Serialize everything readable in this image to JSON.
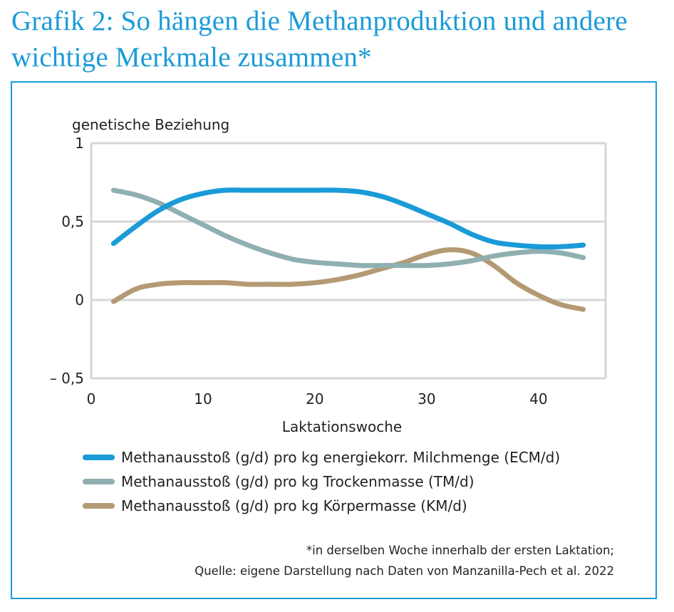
{
  "title": "Grafik 2: So hängen die Methanproduktion und andere wichtige Merkmale zusammen*",
  "chart_data": {
    "type": "line",
    "ylabel": "genetische Beziehung",
    "xlabel": "Laktationswoche",
    "xlim": [
      0,
      46
    ],
    "ylim": [
      -0.5,
      1
    ],
    "xticks": [
      0,
      10,
      20,
      30,
      40
    ],
    "xtick_labels": [
      "0",
      "10",
      "20",
      "30",
      "40"
    ],
    "yticks": [
      1,
      0.5,
      0,
      -0.5
    ],
    "ytick_labels": [
      "1",
      "0,5",
      "0",
      "– 0,5"
    ],
    "grid": "horizontal",
    "legend_position": "bottom",
    "series": [
      {
        "name": "Methanausstoß (g/d) pro kg energiekorr. Milchmenge (ECM/d)",
        "color": "#1a9bd7",
        "x": [
          2,
          4,
          6,
          8,
          10,
          12,
          14,
          16,
          18,
          20,
          22,
          24,
          26,
          28,
          30,
          32,
          34,
          36,
          38,
          40,
          42,
          44
        ],
        "y": [
          0.36,
          0.47,
          0.57,
          0.64,
          0.68,
          0.7,
          0.7,
          0.7,
          0.7,
          0.7,
          0.7,
          0.69,
          0.66,
          0.61,
          0.55,
          0.49,
          0.42,
          0.37,
          0.35,
          0.34,
          0.34,
          0.35
        ]
      },
      {
        "name": "Methanausstoß (g/d) pro kg Trockenmasse (TM/d)",
        "color": "#90afb1",
        "x": [
          2,
          4,
          6,
          8,
          10,
          12,
          14,
          16,
          18,
          20,
          22,
          24,
          26,
          28,
          30,
          32,
          34,
          36,
          38,
          40,
          42,
          44
        ],
        "y": [
          0.7,
          0.67,
          0.62,
          0.55,
          0.48,
          0.41,
          0.35,
          0.3,
          0.26,
          0.24,
          0.23,
          0.22,
          0.22,
          0.22,
          0.22,
          0.23,
          0.25,
          0.28,
          0.3,
          0.31,
          0.3,
          0.27
        ]
      },
      {
        "name": "Methanausstoß (g/d) pro  kg Körpermasse (KM/d)",
        "color": "#b49a74",
        "x": [
          2,
          4,
          6,
          8,
          10,
          12,
          14,
          16,
          18,
          20,
          22,
          24,
          26,
          28,
          30,
          32,
          34,
          36,
          38,
          40,
          42,
          44
        ],
        "y": [
          -0.01,
          0.07,
          0.1,
          0.11,
          0.11,
          0.11,
          0.1,
          0.1,
          0.1,
          0.11,
          0.13,
          0.16,
          0.2,
          0.24,
          0.29,
          0.32,
          0.3,
          0.22,
          0.11,
          0.03,
          -0.03,
          -0.06
        ]
      }
    ]
  },
  "footnote": {
    "line1": "*in derselben Woche innerhalb der ersten Laktation;",
    "line2": "Quelle: eigene Darstellung nach Daten von Manzanilla-Pech et al. 2022"
  }
}
